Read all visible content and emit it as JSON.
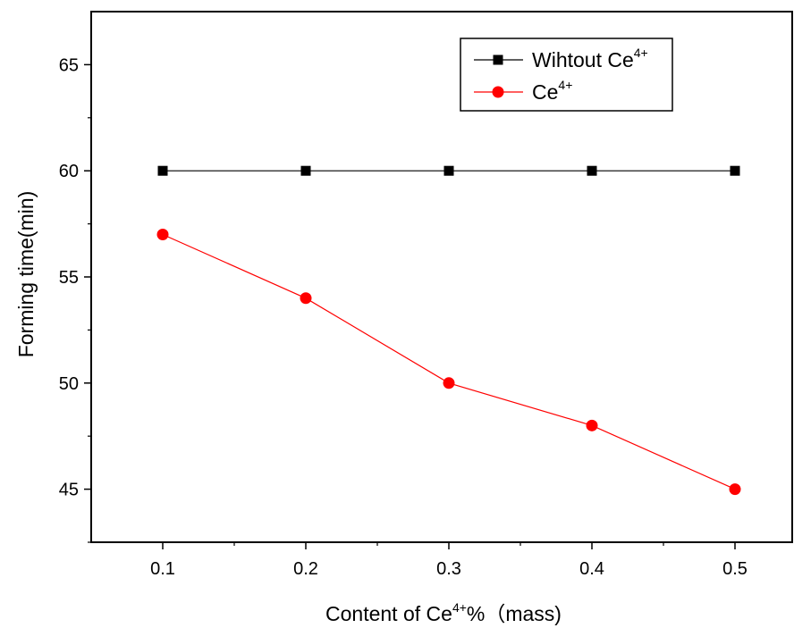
{
  "chart_data": {
    "type": "line",
    "xlabel": {
      "pre": "Content of Ce",
      "sup": "4+",
      "post": "%（mass)"
    },
    "ylabel": "Forming time(min)",
    "x": [
      0.1,
      0.2,
      0.3,
      0.4,
      0.5
    ],
    "x_ticks": [
      "0.1",
      "0.2",
      "0.3",
      "0.4",
      "0.5"
    ],
    "y_ticks": [
      "45",
      "50",
      "55",
      "60",
      "65"
    ],
    "xlim": [
      0.05,
      0.54
    ],
    "ylim": [
      42.5,
      67.5
    ],
    "grid": false,
    "legend_position": "top-right",
    "series": [
      {
        "name": "Wihtout Ce",
        "name_sup": "4+",
        "values": [
          60,
          60,
          60,
          60,
          60
        ],
        "color": "#000000",
        "marker": "square"
      },
      {
        "name": "Ce",
        "name_sup": "4+",
        "values": [
          57,
          54,
          50,
          48,
          45
        ],
        "color": "#ff0000",
        "marker": "circle"
      }
    ]
  }
}
